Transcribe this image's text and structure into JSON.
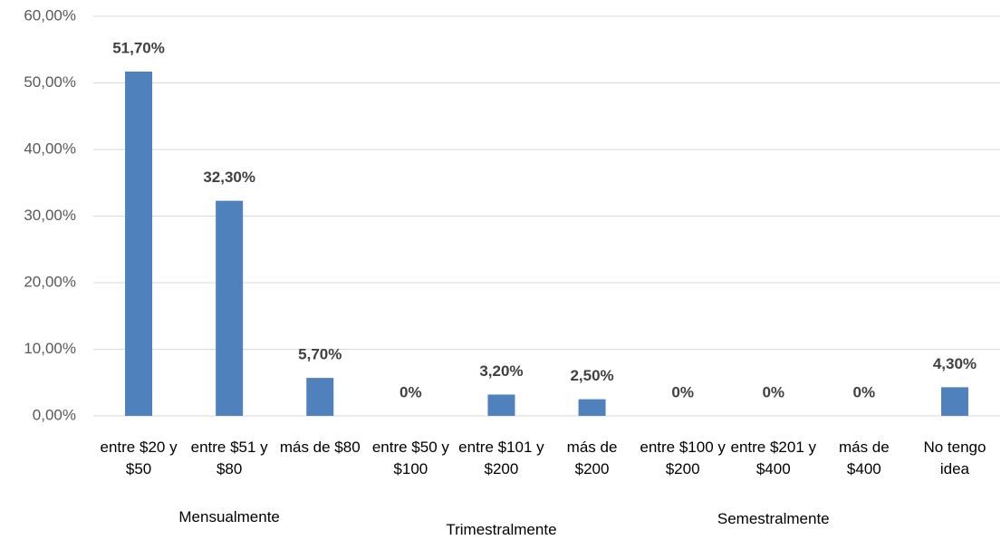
{
  "chart_data": {
    "type": "bar",
    "categories": [
      "entre $20 y $50",
      "entre $51 y $80",
      "más de $80",
      "entre $50 y $100",
      "entre $101 y $200",
      "más de $200",
      "entre $100 y $200",
      "entre $201 y $400",
      "más de $400",
      "No tengo idea"
    ],
    "groups": [
      {
        "label": "Mensualmente",
        "size": 3
      },
      {
        "label": "Trimestralmente",
        "size": 3
      },
      {
        "label": "Semestralmente",
        "size": 3
      }
    ],
    "values": [
      51.7,
      32.3,
      5.7,
      0,
      3.2,
      2.5,
      0,
      0,
      0,
      4.3
    ],
    "value_labels": [
      "51,70%",
      "32,30%",
      "5,70%",
      "0%",
      "3,20%",
      "2,50%",
      "0%",
      "0%",
      "0%",
      "4,30%"
    ],
    "color": "#4f81bd",
    "ylim": [
      0,
      60
    ],
    "yticks": [
      {
        "value": 0,
        "label": "0,00%"
      },
      {
        "value": 10,
        "label": "10,00%"
      },
      {
        "value": 20,
        "label": "20,00%"
      },
      {
        "value": 30,
        "label": "30,00%"
      },
      {
        "value": 40,
        "label": "40,00%"
      },
      {
        "value": 50,
        "label": "50,00%"
      },
      {
        "value": 60,
        "label": "60,00%"
      }
    ],
    "grid": true
  }
}
